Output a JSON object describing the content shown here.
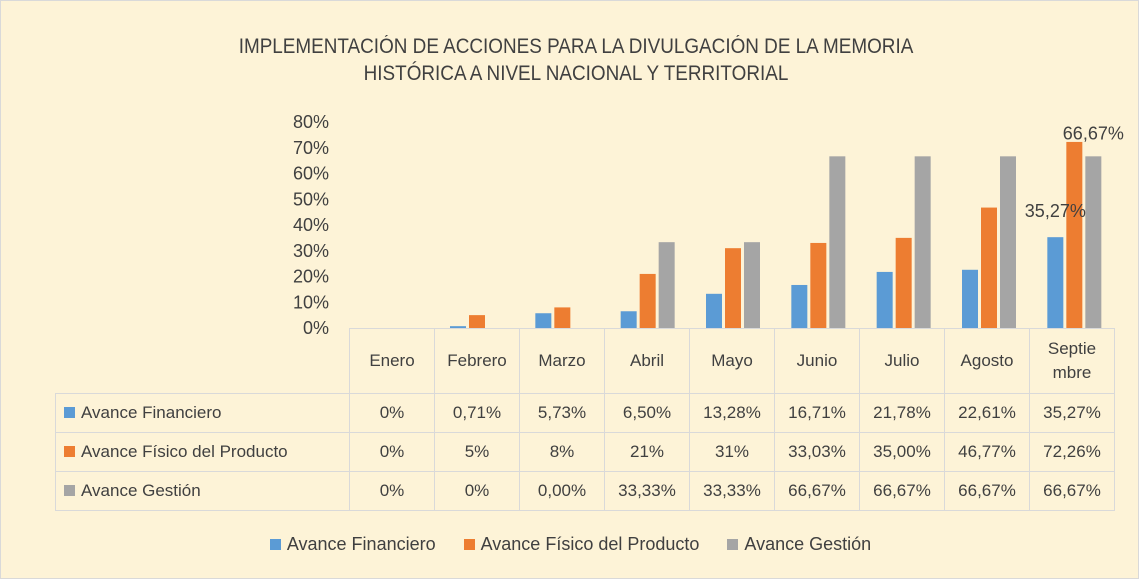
{
  "chart_data": {
    "type": "bar",
    "title": "IMPLEMENTACIÓN DE ACCIONES PARA LA DIVULGACIÓN DE LA MEMORIA HISTÓRICA A NIVEL NACIONAL Y TERRITORIAL",
    "categories": [
      "Enero",
      "Febrero",
      "Marzo",
      "Abril",
      "Mayo",
      "Junio",
      "Julio",
      "Agosto",
      "Septiembre"
    ],
    "series": [
      {
        "name": "Avance Financiero",
        "color": "#5b9bd5",
        "values": [
          0,
          0.71,
          5.73,
          6.5,
          13.28,
          16.71,
          21.78,
          22.61,
          35.27
        ],
        "value_labels": [
          "0%",
          "0,71%",
          "5,73%",
          "6,50%",
          "13,28%",
          "16,71%",
          "21,78%",
          "22,61%",
          "35,27%"
        ]
      },
      {
        "name": "Avance Físico del Producto",
        "color": "#ed7d31",
        "values": [
          0,
          5,
          8,
          21,
          31,
          33.03,
          35,
          46.77,
          72.26
        ],
        "value_labels": [
          "0%",
          "5%",
          "8%",
          "21%",
          "31%",
          "33,03%",
          "35,00%",
          "46,77%",
          "72,26%"
        ]
      },
      {
        "name": "Avance Gestión",
        "color": "#a5a5a5",
        "values": [
          0,
          0,
          0,
          33.33,
          33.33,
          66.67,
          66.67,
          66.67,
          66.67
        ],
        "value_labels": [
          "0%",
          "0%",
          "0,00%",
          "33,33%",
          "33,33%",
          "66,67%",
          "66,67%",
          "66,67%",
          "66,67%"
        ]
      }
    ],
    "ylim": [
      0,
      80
    ],
    "yticks": [
      {
        "value": 0,
        "label": "0%"
      },
      {
        "value": 10,
        "label": "10%"
      },
      {
        "value": 20,
        "label": "20%"
      },
      {
        "value": 30,
        "label": "30%"
      },
      {
        "value": 40,
        "label": "40%"
      },
      {
        "value": 50,
        "label": "50%"
      },
      {
        "value": 60,
        "label": "60%"
      },
      {
        "value": 70,
        "label": "70%"
      },
      {
        "value": 80,
        "label": "80%"
      }
    ],
    "legend": "bottom"
  }
}
